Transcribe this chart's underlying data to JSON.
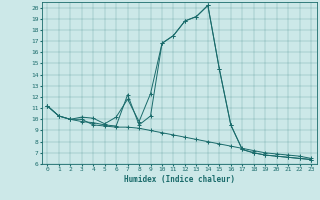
{
  "xlabel": "Humidex (Indice chaleur)",
  "background_color": "#cce8e8",
  "line_color": "#1a6b6b",
  "xlim": [
    -0.5,
    23.5
  ],
  "ylim": [
    6,
    20.5
  ],
  "yticks": [
    6,
    7,
    8,
    9,
    10,
    11,
    12,
    13,
    14,
    15,
    16,
    17,
    18,
    19,
    20
  ],
  "xticks": [
    0,
    1,
    2,
    3,
    4,
    5,
    6,
    7,
    8,
    9,
    10,
    11,
    12,
    13,
    14,
    15,
    16,
    17,
    18,
    19,
    20,
    21,
    22,
    23
  ],
  "series": [
    [
      11.2,
      10.3,
      10.0,
      10.0,
      9.5,
      9.4,
      9.3,
      9.3,
      9.2,
      9.0,
      8.8,
      8.6,
      8.4,
      8.2,
      8.0,
      7.8,
      7.6,
      7.4,
      7.2,
      7.0,
      6.9,
      6.8,
      6.7,
      6.5
    ],
    [
      11.2,
      10.3,
      10.0,
      10.2,
      10.1,
      9.6,
      10.2,
      11.8,
      9.8,
      12.3,
      16.8,
      17.5,
      18.8,
      19.2,
      20.2,
      14.5,
      9.5,
      7.3,
      7.0,
      6.8,
      6.7,
      6.6,
      6.5,
      6.4
    ],
    [
      11.2,
      10.3,
      10.0,
      9.8,
      9.7,
      9.5,
      9.4,
      12.2,
      9.5,
      10.3,
      16.8,
      17.5,
      18.8,
      19.2,
      20.2,
      14.5,
      9.5,
      7.3,
      7.0,
      6.8,
      6.7,
      6.6,
      6.5,
      6.4
    ]
  ]
}
